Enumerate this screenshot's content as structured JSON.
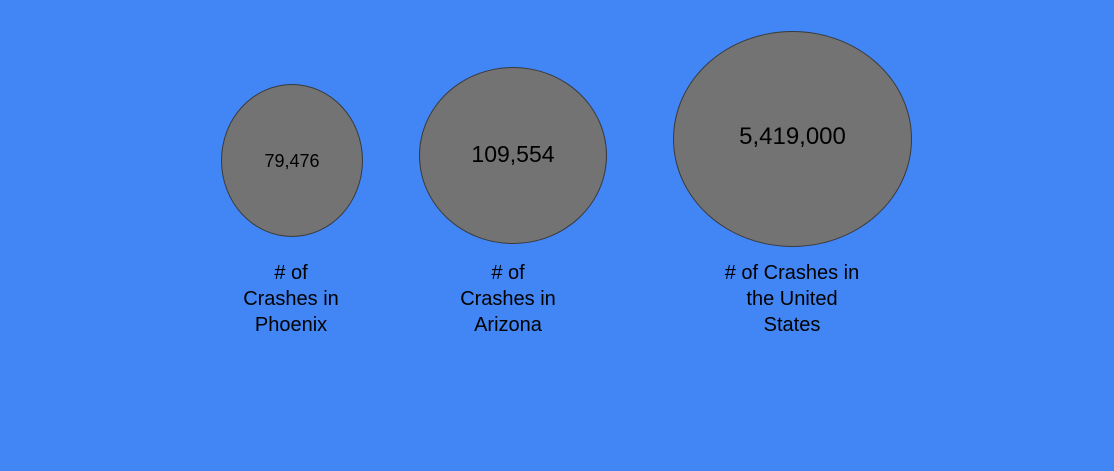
{
  "colors": {
    "background": "#4285f4",
    "bubble_fill": "#737373",
    "bubble_border": "#3a3a3a",
    "text": "#000000"
  },
  "bubbles": [
    {
      "value": "79,476",
      "label_lines": [
        "# of",
        "Crashes in",
        "Phoenix"
      ]
    },
    {
      "value": "109,554",
      "label_lines": [
        "# of",
        "Crashes in",
        "Arizona"
      ]
    },
    {
      "value": "5,419,000",
      "label_lines": [
        "# of Crashes in",
        "the United",
        "States"
      ]
    }
  ]
}
